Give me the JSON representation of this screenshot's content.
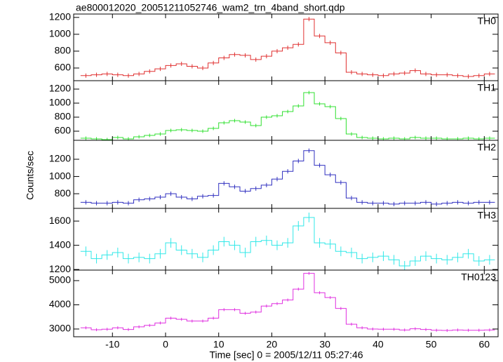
{
  "chart_data": {
    "type": "step",
    "title": "ae800012020_20051211052746_wam2_trn_4band_short.qdp",
    "x_label": "Time [sec] 0 = 2005/12/11 05:27:46",
    "y_label": "Counts/sec",
    "xlim": [
      -17.3,
      62.6
    ],
    "xticks": [
      -10,
      0,
      10,
      20,
      30,
      40,
      50,
      60
    ],
    "bin_width": 2,
    "x": [
      -15,
      -13,
      -11,
      -9,
      -7,
      -5,
      -3,
      -1,
      1,
      3,
      5,
      7,
      9,
      11,
      13,
      15,
      17,
      19,
      21,
      23,
      25,
      27,
      29,
      31,
      33,
      35,
      37,
      39,
      41,
      43,
      45,
      47,
      49,
      51,
      53,
      55,
      57,
      59,
      61
    ],
    "series": [
      {
        "name": "TH0",
        "color": "#e03030",
        "error": 25,
        "ylim": [
          450,
          1240
        ],
        "yticks": [
          600,
          800,
          1000,
          1200
        ],
        "values": [
          510,
          520,
          530,
          520,
          510,
          530,
          560,
          590,
          630,
          650,
          620,
          600,
          660,
          720,
          760,
          750,
          700,
          740,
          800,
          840,
          880,
          1180,
          980,
          900,
          780,
          550,
          530,
          520,
          510,
          530,
          540,
          570,
          530,
          520,
          520,
          510,
          500,
          510,
          530
        ]
      },
      {
        "name": "TH1",
        "color": "#30e030",
        "error": 25,
        "ylim": [
          470,
          1320
        ],
        "yticks": [
          600,
          800,
          1000,
          1200
        ],
        "values": [
          500,
          490,
          480,
          510,
          490,
          520,
          540,
          560,
          610,
          620,
          610,
          600,
          640,
          720,
          750,
          730,
          680,
          800,
          820,
          880,
          960,
          1150,
          990,
          950,
          780,
          560,
          510,
          500,
          490,
          500,
          490,
          510,
          500,
          500,
          490,
          490,
          500,
          490,
          500
        ]
      },
      {
        "name": "TH2",
        "color": "#3030c0",
        "error": 25,
        "ylim": [
          630,
          1420
        ],
        "yticks": [
          800,
          1000,
          1200
        ],
        "values": [
          700,
          690,
          690,
          700,
          690,
          730,
          740,
          760,
          800,
          760,
          740,
          770,
          780,
          920,
          880,
          830,
          860,
          900,
          970,
          1060,
          1180,
          1300,
          1130,
          1020,
          930,
          750,
          700,
          690,
          690,
          680,
          690,
          690,
          700,
          680,
          690,
          700,
          690,
          700,
          700
        ]
      },
      {
        "name": "TH3",
        "color": "#30e8e8",
        "error": 40,
        "ylim": [
          1195,
          1705
        ],
        "yticks": [
          1200,
          1400,
          1600
        ],
        "values": [
          1350,
          1290,
          1320,
          1340,
          1290,
          1300,
          1290,
          1330,
          1420,
          1360,
          1330,
          1300,
          1360,
          1430,
          1400,
          1340,
          1430,
          1440,
          1400,
          1420,
          1560,
          1630,
          1420,
          1410,
          1350,
          1340,
          1290,
          1300,
          1310,
          1280,
          1230,
          1270,
          1310,
          1290,
          1280,
          1300,
          1330,
          1270,
          1280
        ]
      },
      {
        "name": "TH0123",
        "color": "#e030e0",
        "error": 60,
        "ylim": [
          2680,
          5435
        ],
        "yticks": [
          3000,
          4000,
          5000
        ],
        "values": [
          3050,
          2970,
          2990,
          3050,
          2980,
          3090,
          3150,
          3250,
          3450,
          3400,
          3330,
          3330,
          3450,
          3800,
          3800,
          3650,
          3700,
          3950,
          4050,
          4200,
          4650,
          5300,
          4500,
          4300,
          3850,
          3200,
          3050,
          3000,
          2990,
          2990,
          2960,
          3010,
          2980,
          2950,
          2940,
          2960,
          2950,
          2950,
          2960
        ]
      }
    ]
  }
}
